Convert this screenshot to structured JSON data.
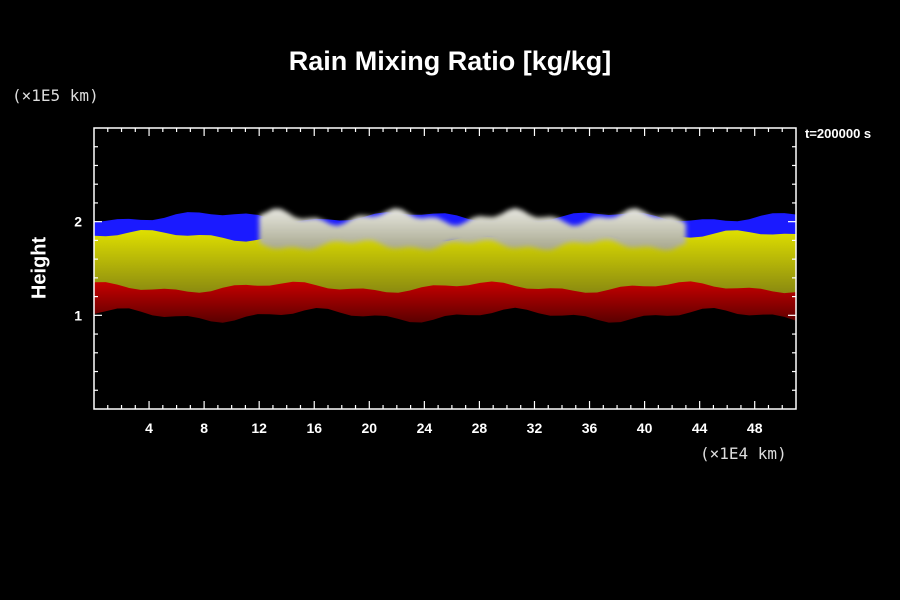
{
  "chart_data": {
    "type": "heatmap",
    "title": "Rain Mixing Ratio [kg/kg]",
    "ylabel": "Height",
    "xunit": "(×1E4 km)",
    "yunit": "(×1E5 km)",
    "time_label": "t=200000 s",
    "xlim": [
      0,
      51
    ],
    "ylim": [
      0,
      3
    ],
    "x_ticks": [
      "4",
      "8",
      "12",
      "16",
      "20",
      "24",
      "28",
      "32",
      "36",
      "40",
      "44",
      "48"
    ],
    "y_ticks": [
      "1",
      "2"
    ],
    "layers": [
      {
        "color": "#1a1aff",
        "x": [
          0,
          51
        ],
        "y": [
          1.75,
          2.05
        ]
      },
      {
        "color": "#d40000",
        "x": [
          0,
          51
        ],
        "y": [
          1.0,
          1.4
        ]
      },
      {
        "color": "#c8c800",
        "x": [
          0,
          51
        ],
        "y": [
          1.3,
          1.85
        ]
      },
      {
        "color": "#d8d8d0",
        "x": [
          12,
          43
        ],
        "y": [
          1.75,
          2.05
        ]
      }
    ],
    "colors": {
      "background": "#000000",
      "axes": "#ffffff"
    }
  }
}
